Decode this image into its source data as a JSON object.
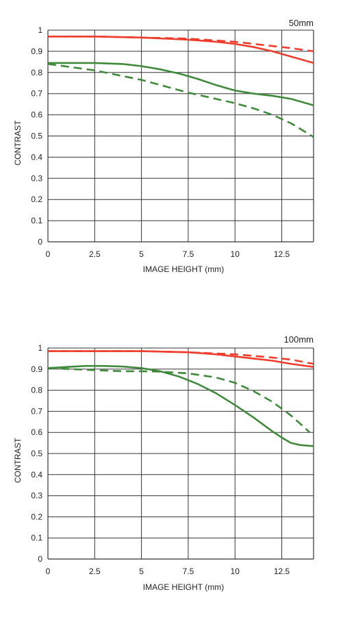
{
  "colors": {
    "red": "#f03c2a",
    "green": "#3e8a3a",
    "grid": "#333333",
    "text": "#222222"
  },
  "chart_data": [
    {
      "type": "line",
      "title": "50mm",
      "xlabel": "IMAGE HEIGHT (mm)",
      "ylabel": "CONTRAST",
      "xlim": [
        0,
        14.2
      ],
      "ylim": [
        0,
        1
      ],
      "x_ticks": [
        0,
        2.5,
        5,
        7.5,
        10,
        12.5
      ],
      "x_tick_labels": [
        "0",
        "2.5",
        "5",
        "7.5",
        "10",
        "12.5"
      ],
      "y_ticks": [
        0,
        0.1,
        0.2,
        0.3,
        0.4,
        0.5,
        0.6,
        0.7,
        0.8,
        0.9,
        1
      ],
      "y_tick_labels": [
        "0",
        "0.1",
        "0.2",
        "0.3",
        "0.4",
        "0.5",
        "0.6",
        "0.7",
        "0.8",
        "0.9",
        "1"
      ],
      "grid": true,
      "series": [
        {
          "color": "red",
          "style": "solid",
          "points": [
            [
              0,
              0.97
            ],
            [
              2.5,
              0.97
            ],
            [
              5,
              0.965
            ],
            [
              7.5,
              0.955
            ],
            [
              9,
              0.945
            ],
            [
              10,
              0.935
            ],
            [
              11,
              0.92
            ],
            [
              12,
              0.9
            ],
            [
              13,
              0.875
            ],
            [
              14.2,
              0.845
            ]
          ]
        },
        {
          "color": "red",
          "style": "dashed",
          "points": [
            [
              0,
              0.97
            ],
            [
              2.5,
              0.97
            ],
            [
              5,
              0.965
            ],
            [
              7.5,
              0.96
            ],
            [
              10,
              0.945
            ],
            [
              12,
              0.925
            ],
            [
              13,
              0.915
            ],
            [
              14.2,
              0.9
            ]
          ]
        },
        {
          "color": "green",
          "style": "solid",
          "points": [
            [
              0,
              0.845
            ],
            [
              1,
              0.845
            ],
            [
              2.5,
              0.845
            ],
            [
              4,
              0.84
            ],
            [
              5,
              0.83
            ],
            [
              6,
              0.815
            ],
            [
              7,
              0.795
            ],
            [
              8,
              0.77
            ],
            [
              9,
              0.74
            ],
            [
              10,
              0.715
            ],
            [
              11,
              0.7
            ],
            [
              12,
              0.69
            ],
            [
              13,
              0.675
            ],
            [
              14.2,
              0.645
            ]
          ]
        },
        {
          "color": "green",
          "style": "dashed",
          "points": [
            [
              0,
              0.84
            ],
            [
              2.5,
              0.81
            ],
            [
              5,
              0.765
            ],
            [
              7.5,
              0.705
            ],
            [
              10,
              0.655
            ],
            [
              11,
              0.63
            ],
            [
              12,
              0.6
            ],
            [
              13,
              0.56
            ],
            [
              14.2,
              0.495
            ]
          ]
        }
      ]
    },
    {
      "type": "line",
      "title": "100mm",
      "xlabel": "IMAGE HEIGHT (mm)",
      "ylabel": "CONTRAST",
      "xlim": [
        0,
        14.2
      ],
      "ylim": [
        0,
        1
      ],
      "x_ticks": [
        0,
        2.5,
        5,
        7.5,
        10,
        12.5
      ],
      "x_tick_labels": [
        "0",
        "2.5",
        "5",
        "7.5",
        "10",
        "12.5"
      ],
      "y_ticks": [
        0,
        0.1,
        0.2,
        0.3,
        0.4,
        0.5,
        0.6,
        0.7,
        0.8,
        0.9,
        1
      ],
      "y_tick_labels": [
        "0",
        "0.1",
        "0.2",
        "0.3",
        "0.4",
        "0.5",
        "0.6",
        "0.7",
        "0.8",
        "0.9",
        "1"
      ],
      "grid": true,
      "series": [
        {
          "color": "red",
          "style": "solid",
          "points": [
            [
              0,
              0.985
            ],
            [
              2.5,
              0.985
            ],
            [
              5,
              0.985
            ],
            [
              7.5,
              0.98
            ],
            [
              9,
              0.97
            ],
            [
              10,
              0.96
            ],
            [
              11,
              0.95
            ],
            [
              12,
              0.94
            ],
            [
              13,
              0.925
            ],
            [
              14.2,
              0.91
            ]
          ]
        },
        {
          "color": "red",
          "style": "dashed",
          "points": [
            [
              0,
              0.985
            ],
            [
              2.5,
              0.985
            ],
            [
              5,
              0.985
            ],
            [
              7.5,
              0.98
            ],
            [
              10,
              0.97
            ],
            [
              12,
              0.955
            ],
            [
              13,
              0.945
            ],
            [
              14.2,
              0.925
            ]
          ]
        },
        {
          "color": "green",
          "style": "solid",
          "points": [
            [
              0,
              0.905
            ],
            [
              1,
              0.91
            ],
            [
              2,
              0.915
            ],
            [
              3,
              0.915
            ],
            [
              4,
              0.912
            ],
            [
              5,
              0.905
            ],
            [
              6,
              0.89
            ],
            [
              7,
              0.865
            ],
            [
              8,
              0.83
            ],
            [
              9,
              0.785
            ],
            [
              10,
              0.73
            ],
            [
              11,
              0.67
            ],
            [
              12,
              0.605
            ],
            [
              12.6,
              0.57
            ],
            [
              13,
              0.55
            ],
            [
              13.5,
              0.54
            ],
            [
              14.2,
              0.535
            ]
          ]
        },
        {
          "color": "green",
          "style": "dashed",
          "points": [
            [
              0,
              0.905
            ],
            [
              2.5,
              0.895
            ],
            [
              4,
              0.89
            ],
            [
              5,
              0.89
            ],
            [
              6,
              0.888
            ],
            [
              7.5,
              0.88
            ],
            [
              9,
              0.86
            ],
            [
              10,
              0.835
            ],
            [
              11,
              0.795
            ],
            [
              12,
              0.745
            ],
            [
              13,
              0.68
            ],
            [
              13.5,
              0.64
            ],
            [
              14,
              0.6
            ]
          ]
        }
      ]
    }
  ]
}
